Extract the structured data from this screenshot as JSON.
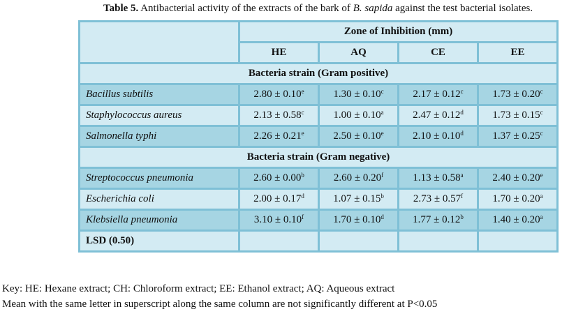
{
  "title": {
    "label": "Table 5.",
    "text_before": " Antibacterial activity of the extracts of the bark of ",
    "species": "B. sapida",
    "text_after": " against the test bacterial isolates."
  },
  "header": {
    "group": "Zone of Inhibition (mm)",
    "columns": [
      "HE",
      "AQ",
      "CE",
      "EE"
    ]
  },
  "sections": [
    {
      "label": "Bacteria strain (Gram positive)",
      "rows": [
        {
          "name": "Bacillus subtilis",
          "cells": [
            [
              "2.80 ± 0.10",
              "e"
            ],
            [
              "1.30 ± 0.10",
              "c"
            ],
            [
              "2.17 ± 0.12",
              "c"
            ],
            [
              "1.73 ± 0.20",
              "c"
            ]
          ]
        },
        {
          "name": "Staphylococcus aureus",
          "cells": [
            [
              "2.13 ± 0.58",
              "c"
            ],
            [
              "1.00 ± 0.10",
              "a"
            ],
            [
              "2.47 ± 0.12",
              "d"
            ],
            [
              "1.73 ± 0.15",
              "c"
            ]
          ]
        },
        {
          "name": "Salmonella typhi",
          "cells": [
            [
              "2.26 ± 0.21",
              "e"
            ],
            [
              "2.50 ± 0.10",
              "e"
            ],
            [
              "2.10 ± 0.10",
              "d"
            ],
            [
              "1.37 ± 0.25",
              "c"
            ]
          ]
        }
      ]
    },
    {
      "label": "Bacteria strain (Gram negative)",
      "rows": [
        {
          "name": "Streptococcus pneumonia",
          "cells": [
            [
              "2.60 ± 0.00",
              "b"
            ],
            [
              "2.60 ± 0.20",
              "f"
            ],
            [
              "1.13 ± 0.58",
              "a"
            ],
            [
              "2.40 ± 0.20",
              "e"
            ]
          ]
        },
        {
          "name": "Escherichia coli",
          "cells": [
            [
              "2.00 ± 0.17",
              "d"
            ],
            [
              "1.07 ± 0.15",
              "b"
            ],
            [
              "2.73 ± 0.57",
              "f"
            ],
            [
              "1.70 ± 0.20",
              "a"
            ]
          ]
        },
        {
          "name": "Klebsiella pneumonia",
          "cells": [
            [
              "3.10 ± 0.10",
              "f"
            ],
            [
              "1.70 ± 0.10",
              "d"
            ],
            [
              "1.77 ± 0.12",
              "b"
            ],
            [
              "1.40 ± 0.20",
              "a"
            ]
          ]
        }
      ]
    }
  ],
  "lsd": "LSD (0.50)",
  "key": [
    "Key: HE: Hexane extract; CH: Chloroform extract; EE: Ethanol extract; AQ: Aqueous extract",
    "Mean with the same letter in superscript along the same column are not significantly different at P<0.05"
  ]
}
